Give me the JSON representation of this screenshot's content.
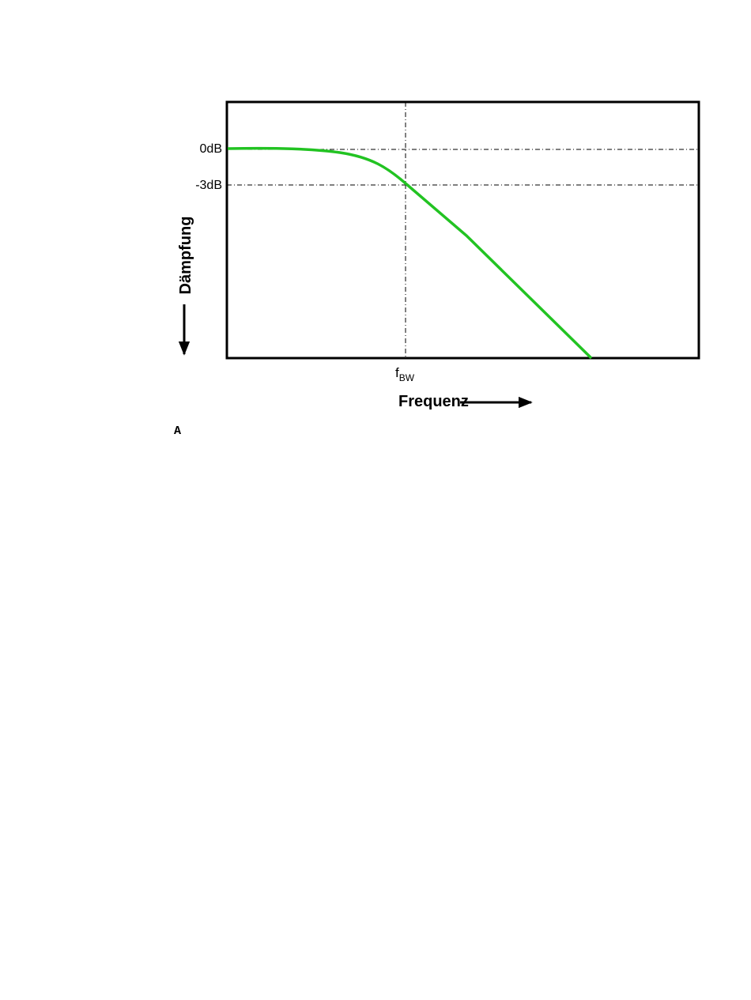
{
  "figure": {
    "y_labels": [
      "0dB",
      "-3dB"
    ],
    "x_label_main": "f",
    "x_label_sub": "BW",
    "y_axis_title": "Dämpfung",
    "x_axis_title": "Frequenz"
  },
  "caption": "A"
}
